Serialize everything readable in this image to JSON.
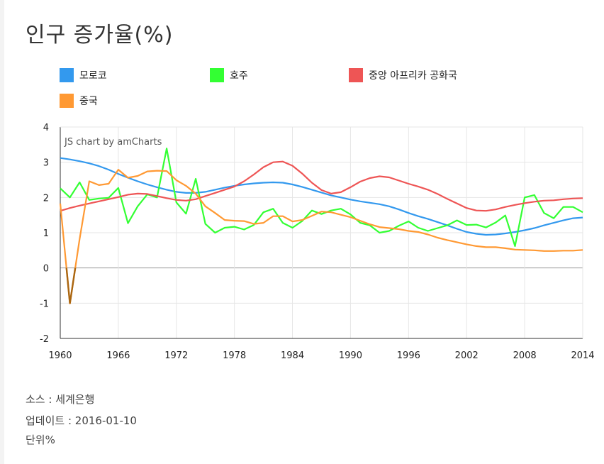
{
  "title": "인구 증가율(%)",
  "watermark": "JS chart by amCharts",
  "legend": [
    {
      "name": "모로코",
      "color": "#3399ee"
    },
    {
      "name": "호주",
      "color": "#33ff33"
    },
    {
      "name": "중앙 아프리카 공화국",
      "color": "#ee5555"
    },
    {
      "name": "중국",
      "color": "#ff9933"
    }
  ],
  "chart_data": {
    "type": "line",
    "x_ticks": [
      1960,
      1966,
      1972,
      1978,
      1984,
      1990,
      1996,
      2002,
      2008,
      2014
    ],
    "y_ticks": [
      4,
      3,
      2,
      1,
      0,
      -1,
      -2
    ],
    "xlim": [
      1960,
      2014
    ],
    "ylim": [
      -2,
      4
    ],
    "grid": true,
    "legend_position": "top",
    "x": [
      1960,
      1961,
      1962,
      1963,
      1964,
      1965,
      1966,
      1967,
      1968,
      1969,
      1970,
      1971,
      1972,
      1973,
      1974,
      1975,
      1976,
      1977,
      1978,
      1979,
      1980,
      1981,
      1982,
      1983,
      1984,
      1985,
      1986,
      1987,
      1988,
      1989,
      1990,
      1991,
      1992,
      1993,
      1994,
      1995,
      1996,
      1997,
      1998,
      1999,
      2000,
      2001,
      2002,
      2003,
      2004,
      2005,
      2006,
      2007,
      2008,
      2009,
      2010,
      2011,
      2012,
      2013,
      2014
    ],
    "series": [
      {
        "name": "모로코",
        "color": "#3399ee",
        "values": [
          3.12,
          3.08,
          3.03,
          2.97,
          2.89,
          2.79,
          2.67,
          2.56,
          2.46,
          2.37,
          2.29,
          2.22,
          2.16,
          2.13,
          2.13,
          2.16,
          2.22,
          2.28,
          2.33,
          2.37,
          2.4,
          2.42,
          2.43,
          2.42,
          2.37,
          2.3,
          2.22,
          2.14,
          2.06,
          2.0,
          1.94,
          1.89,
          1.85,
          1.81,
          1.75,
          1.66,
          1.56,
          1.47,
          1.39,
          1.3,
          1.21,
          1.11,
          1.02,
          0.97,
          0.94,
          0.95,
          0.98,
          1.02,
          1.07,
          1.13,
          1.21,
          1.28,
          1.35,
          1.41,
          1.43
        ]
      },
      {
        "name": "호주",
        "color": "#33ff33",
        "values": [
          2.26,
          2.0,
          2.43,
          1.93,
          1.97,
          1.99,
          2.27,
          1.27,
          1.75,
          2.09,
          2.0,
          3.39,
          1.86,
          1.54,
          2.53,
          1.25,
          1.0,
          1.14,
          1.17,
          1.09,
          1.22,
          1.58,
          1.68,
          1.28,
          1.14,
          1.33,
          1.63,
          1.53,
          1.63,
          1.68,
          1.52,
          1.28,
          1.21,
          1.0,
          1.05,
          1.2,
          1.32,
          1.14,
          1.05,
          1.13,
          1.21,
          1.35,
          1.22,
          1.23,
          1.15,
          1.29,
          1.49,
          0.62,
          2.0,
          2.07,
          1.56,
          1.41,
          1.73,
          1.73,
          1.58
        ]
      },
      {
        "name": "중앙 아프리카 공화국",
        "color": "#ee5555",
        "values": [
          1.62,
          1.7,
          1.77,
          1.83,
          1.89,
          1.95,
          2.01,
          2.08,
          2.11,
          2.1,
          2.04,
          1.98,
          1.93,
          1.91,
          1.95,
          2.04,
          2.13,
          2.22,
          2.31,
          2.46,
          2.65,
          2.86,
          3.0,
          3.02,
          2.9,
          2.68,
          2.42,
          2.21,
          2.11,
          2.15,
          2.29,
          2.45,
          2.55,
          2.6,
          2.57,
          2.48,
          2.39,
          2.31,
          2.22,
          2.1,
          1.96,
          1.83,
          1.7,
          1.63,
          1.62,
          1.66,
          1.73,
          1.79,
          1.84,
          1.88,
          1.91,
          1.92,
          1.95,
          1.97,
          1.98
        ]
      },
      {
        "name": "중국",
        "color": "#ff9933",
        "values": [
          1.83,
          -1.01,
          0.82,
          2.46,
          2.35,
          2.39,
          2.79,
          2.56,
          2.61,
          2.74,
          2.76,
          2.75,
          2.49,
          2.33,
          2.11,
          1.75,
          1.56,
          1.36,
          1.34,
          1.33,
          1.25,
          1.28,
          1.47,
          1.47,
          1.32,
          1.36,
          1.48,
          1.6,
          1.58,
          1.51,
          1.44,
          1.34,
          1.24,
          1.16,
          1.13,
          1.1,
          1.05,
          1.02,
          0.95,
          0.86,
          0.79,
          0.73,
          0.67,
          0.62,
          0.59,
          0.59,
          0.56,
          0.52,
          0.51,
          0.5,
          0.48,
          0.48,
          0.49,
          0.49,
          0.51
        ]
      }
    ]
  },
  "footer": {
    "source": "소스 : 세계은행",
    "updated": "업데이트 : 2016-01-10",
    "unit": "단위%"
  }
}
